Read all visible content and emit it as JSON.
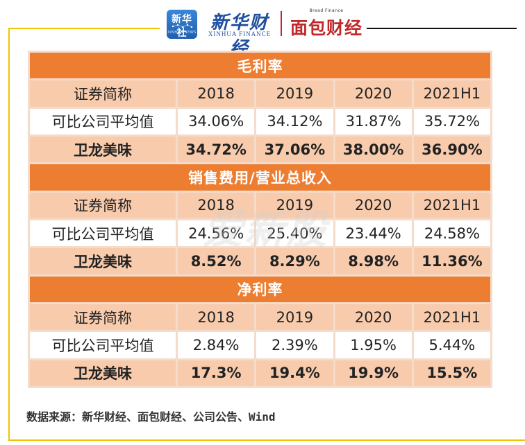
{
  "header": {
    "seal_text": "新华社",
    "seal_sub": "XINHUA NEWS",
    "xinhua_finance_cn": "新华财经",
    "xinhua_finance_en": "XINHUA FINANCE",
    "bread_finance_en": "Bread Finance",
    "bread_finance_cn": "面包财经"
  },
  "watermark": "爱新股",
  "table": {
    "header_row": [
      "证券简称",
      "2018",
      "2019",
      "2020",
      "2021H1"
    ],
    "sections": [
      {
        "title": "毛利率",
        "comparable": {
          "name": "可比公司平均值",
          "values": [
            "34.06%",
            "34.12%",
            "31.87%",
            "35.72%"
          ]
        },
        "weilong": {
          "name": "卫龙美味",
          "values": [
            "34.72%",
            "37.06%",
            "38.00%",
            "36.90%"
          ]
        }
      },
      {
        "title": "销售费用/营业总收入",
        "comparable": {
          "name": "可比公司平均值",
          "values": [
            "24.56%",
            "25.40%",
            "23.44%",
            "24.58%"
          ]
        },
        "weilong": {
          "name": "卫龙美味",
          "values": [
            "8.52%",
            "8.29%",
            "8.98%",
            "11.36%"
          ]
        }
      },
      {
        "title": "净利率",
        "comparable": {
          "name": "可比公司平均值",
          "values": [
            "2.84%",
            "2.39%",
            "1.95%",
            "5.44%"
          ]
        },
        "weilong": {
          "name": "卫龙美味",
          "values": [
            "17.3%",
            "19.4%",
            "19.9%",
            "15.5%"
          ]
        }
      }
    ]
  },
  "source": "数据来源：新华财经、面包财经、公司公告、Wind",
  "colors": {
    "section_bg": "#ed7d31",
    "header_bg": "#f8cbad",
    "frame_gold": "#f2c400",
    "brand_red": "#c0282a",
    "brand_blue": "#1f4e9e"
  }
}
